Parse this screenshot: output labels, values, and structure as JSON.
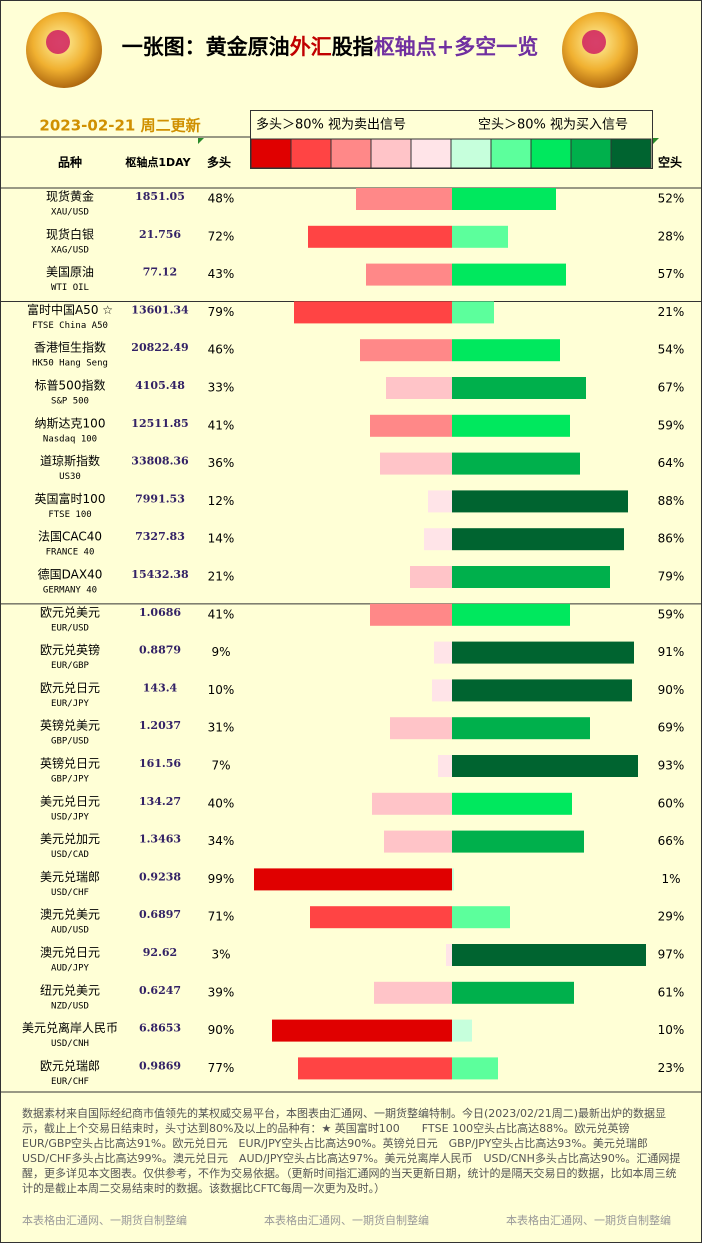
{
  "header": {
    "title_parts": [
      {
        "text": "一张图：黄金原油",
        "color": "#000000"
      },
      {
        "text": "外汇",
        "color": "#c00000"
      },
      {
        "text": "股指",
        "color": "#000000"
      },
      {
        "text": "枢轴点+多空一览",
        "color": "#7030a0"
      }
    ],
    "date": "2023-02-21 周二更新",
    "legend_long": "多头＞80%  视为卖出信号",
    "legend_short": "空头＞80%  视为买入信号",
    "swatches": [
      "#e00000",
      "#ff4444",
      "#ff8888",
      "#ffc4c8",
      "#ffe4e8",
      "#c6ffdc",
      "#5cff9c",
      "#00e85e",
      "#00b04c",
      "#006430"
    ]
  },
  "columns": {
    "name": "品种",
    "pivot": "枢轴点1DAY",
    "long": "多头",
    "short": "空头"
  },
  "groups": [
    {
      "rows": [
        {
          "name": "现货黄金",
          "code": "XAU/USD",
          "pivot": "1851.05",
          "long": {
            "value": 48,
            "label": "48%"
          },
          "short": {
            "value": 52,
            "label": "52%"
          }
        },
        {
          "name": "现货白银",
          "code": "XAG/USD",
          "pivot": "21.756",
          "long": {
            "value": 72,
            "label": "72%"
          },
          "short": {
            "value": 28,
            "label": "28%"
          }
        },
        {
          "name": "美国原油",
          "code": "WTI OIL",
          "pivot": "77.12",
          "long": {
            "value": 43,
            "label": "43%"
          },
          "short": {
            "value": 57,
            "label": "57%"
          }
        }
      ]
    },
    {
      "rows": [
        {
          "name": "富时中国A50 ☆",
          "code": "FTSE China A50",
          "pivot": "13601.34",
          "long": {
            "value": 79,
            "label": "79%"
          },
          "short": {
            "value": 21,
            "label": "21%"
          }
        },
        {
          "name": "香港恒生指数",
          "code": "HK50 Hang Seng",
          "pivot": "20822.49",
          "long": {
            "value": 46,
            "label": "46%"
          },
          "short": {
            "value": 54,
            "label": "54%"
          }
        },
        {
          "name": "标普500指数",
          "code": "S&P 500",
          "pivot": "4105.48",
          "long": {
            "value": 33,
            "label": "33%"
          },
          "short": {
            "value": 67,
            "label": "67%"
          }
        },
        {
          "name": "纳斯达克100",
          "code": "Nasdaq 100",
          "pivot": "12511.85",
          "long": {
            "value": 41,
            "label": "41%"
          },
          "short": {
            "value": 59,
            "label": "59%"
          }
        },
        {
          "name": "道琼斯指数",
          "code": "US30",
          "pivot": "33808.36",
          "long": {
            "value": 36,
            "label": "36%"
          },
          "short": {
            "value": 64,
            "label": "64%"
          }
        },
        {
          "name": "英国富时100",
          "code": "FTSE 100",
          "pivot": "7991.53",
          "long": {
            "value": 12,
            "label": "12%"
          },
          "short": {
            "value": 88,
            "label": "88%"
          }
        },
        {
          "name": "法国CAC40",
          "code": "FRANCE 40",
          "pivot": "7327.83",
          "long": {
            "value": 14,
            "label": "14%"
          },
          "short": {
            "value": 86,
            "label": "86%"
          }
        },
        {
          "name": "德国DAX40",
          "code": "GERMANY 40",
          "pivot": "15432.38",
          "long": {
            "value": 21,
            "label": "21%"
          },
          "short": {
            "value": 79,
            "label": "79%"
          }
        }
      ]
    },
    {
      "rows": [
        {
          "name": "欧元兑美元",
          "code": "EUR/USD",
          "pivot": "1.0686",
          "long": {
            "value": 41,
            "label": "41%"
          },
          "short": {
            "value": 59,
            "label": "59%"
          }
        },
        {
          "name": "欧元兑英镑",
          "code": "EUR/GBP",
          "pivot": "0.8879",
          "long": {
            "value": 9,
            "label": "9%"
          },
          "short": {
            "value": 91,
            "label": "91%"
          }
        },
        {
          "name": "欧元兑日元",
          "code": "EUR/JPY",
          "pivot": "143.4",
          "long": {
            "value": 10,
            "label": "10%"
          },
          "short": {
            "value": 90,
            "label": "90%"
          }
        },
        {
          "name": "英镑兑美元",
          "code": "GBP/USD",
          "pivot": "1.2037",
          "long": {
            "value": 31,
            "label": "31%"
          },
          "short": {
            "value": 69,
            "label": "69%"
          }
        },
        {
          "name": "英镑兑日元",
          "code": "GBP/JPY",
          "pivot": "161.56",
          "long": {
            "value": 7,
            "label": "7%"
          },
          "short": {
            "value": 93,
            "label": "93%"
          }
        },
        {
          "name": "美元兑日元",
          "code": "USD/JPY",
          "pivot": "134.27",
          "long": {
            "value": 40,
            "label": "40%"
          },
          "short": {
            "value": 60,
            "label": "60%"
          }
        },
        {
          "name": "美元兑加元",
          "code": "USD/CAD",
          "pivot": "1.3463",
          "long": {
            "value": 34,
            "label": "34%"
          },
          "short": {
            "value": 66,
            "label": "66%"
          }
        },
        {
          "name": "美元兑瑞郎",
          "code": "USD/CHF",
          "pivot": "0.9238",
          "long": {
            "value": 99,
            "label": "99%"
          },
          "short": {
            "value": 1,
            "label": "1%"
          }
        },
        {
          "name": "澳元兑美元",
          "code": "AUD/USD",
          "pivot": "0.6897",
          "long": {
            "value": 71,
            "label": "71%"
          },
          "short": {
            "value": 29,
            "label": "29%"
          }
        },
        {
          "name": "澳元兑日元",
          "code": "AUD/JPY",
          "pivot": "92.62",
          "long": {
            "value": 3,
            "label": "3%"
          },
          "short": {
            "value": 97,
            "label": "97%"
          }
        },
        {
          "name": "纽元兑美元",
          "code": "NZD/USD",
          "pivot": "0.6247",
          "long": {
            "value": 39,
            "label": "39%"
          },
          "short": {
            "value": 61,
            "label": "61%"
          }
        },
        {
          "name": "美元兑离岸人民币",
          "code": "USD/CNH",
          "pivot": "6.8653",
          "long": {
            "value": 90,
            "label": "90%"
          },
          "short": {
            "value": 10,
            "label": "10%"
          }
        },
        {
          "name": "欧元兑瑞郎",
          "code": "EUR/CHF",
          "pivot": "0.9869",
          "long": {
            "value": 77,
            "label": "77%"
          },
          "short": {
            "value": 23,
            "label": "23%"
          }
        }
      ]
    }
  ],
  "footer": {
    "text": "数据素材来自国际经纪商市值领先的某权威交易平台，本图表由汇通网、一期货整编特制。今日(2023/02/21周二)最新出炉的数据显示，截止上个交易日结束时，头寸达到80%及以上的品种有：★ 英国富时100　　FTSE 100空头占比高达88%。欧元兑英镑　EUR/GBP空头占比高达91%。欧元兑日元　EUR/JPY空头占比高达90%。英镑兑日元　GBP/JPY空头占比高达93%。美元兑瑞郎USD/CHF多头占比高达99%。澳元兑日元　AUD/JPY空头占比高达97%。美元兑离岸人民币　USD/CNH多头占比高达90%。汇通网提醒，更多详见本文图表。仅供参考，不作为交易依据。（更新时间指汇通网的当天更新日期，统计的是隔天交易日的数据，比如本周三统计的是截止本周二交易结束时的数据。该数据比CFTC每周一次更为及时。）",
    "credits": [
      "本表格由汇通网、一期货自制整编",
      "本表格由汇通网、一期货自制整编",
      "本表格由汇通网、一期货自制整编"
    ]
  }
}
